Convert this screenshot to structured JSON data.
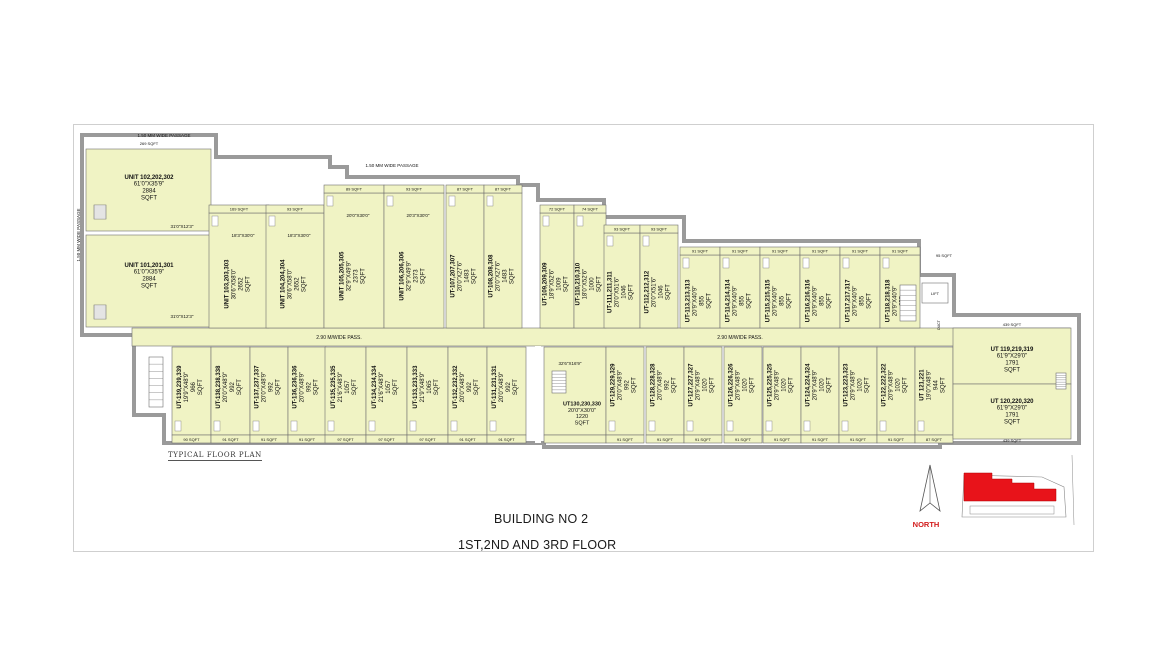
{
  "building_title": "BUILDING NO 2",
  "floor_title": "1ST,2ND AND 3RD FLOOR",
  "typical_label": "TYPICAL FLOOR PLAN",
  "north_label": "NORTH",
  "passages": {
    "top_wide_1": "1.50 MM WIDE PASSAGE",
    "top_wide_2": "1.50 MM WIDE PASSAGE",
    "left_wide": "1.50 MM WIDE PASSAGE",
    "corridor_left": "2.90 M/WIDE PASS.",
    "corridor_right": "2.90 M/WIDE PASS."
  },
  "colors": {
    "unit_fill": "#f0f3c4",
    "stroke": "#6f6f6f",
    "wall": "#8a8a8a",
    "keyplan_highlight": "#e8131a"
  },
  "left_units": [
    {
      "id": "UNIT 102,202,302",
      "dim": "61'0\"X35'9\"",
      "area": "2884",
      "unit": "SQFT",
      "sub": "31'0\"X12'3\""
    },
    {
      "id": "UNIT 101,201,301",
      "dim": "61'0\"X35'9\"",
      "area": "2884",
      "unit": "SQFT",
      "sub": "31'0\"X12'3\""
    }
  ],
  "top_units": [
    {
      "lines": [
        "UNIT 103,203,303",
        "30'6\"X58'0\"",
        "2652",
        "SQFT"
      ],
      "tag": "169 SQFT",
      "size": "18'3\"X30'0\""
    },
    {
      "lines": [
        "UNIT 104,204,304",
        "30'6\"X58'0\"",
        "2652",
        "SQFT"
      ],
      "tag": "93 SQFT",
      "size": "18'3\"X30'0\""
    },
    {
      "lines": [
        "UNIT 105,205,305",
        "32'9\"X49'9\"",
        "2373",
        "SQFT"
      ],
      "tag": "89 SQFT",
      "size": "20'0\"X30'0\""
    },
    {
      "lines": [
        "UNIT 106,206,306",
        "32'9\"X49'9\"",
        "2373",
        "SQFT"
      ],
      "tag": "93 SQFT",
      "size": "20'3\"X30'0\""
    },
    {
      "lines": [
        "UT-107,207,307",
        "20'0\"X27'6\"",
        "1483",
        "SQFT"
      ],
      "tag": "87 SQFT"
    },
    {
      "lines": [
        "UT-108,208,308",
        "20'0\"X27'6\"",
        "1483",
        "SQFT"
      ],
      "tag": "87 SQFT"
    },
    {
      "lines": [
        "UT-109,209,309",
        "18'9\"X52'6\"",
        "1009",
        "SQFT"
      ],
      "tag": "72 SQFT"
    },
    {
      "lines": [
        "UT-110,210,310",
        "18'0\"X52'6\"",
        "1000",
        "SQFT"
      ],
      "tag": "74 SQFT"
    },
    {
      "lines": [
        "UT-111,211,311",
        "20'0\"X51'6\"",
        "1046",
        "SQFT"
      ],
      "tag": "93 SQFT"
    },
    {
      "lines": [
        "UT-112,212,312",
        "20'0\"X51'6\"",
        "1046",
        "SQFT"
      ],
      "tag": "93 SQFT"
    },
    {
      "lines": [
        "UT-113,213,313",
        "20'9\"X40'9\"",
        "855",
        "SQFT"
      ],
      "tag": "91 SQFT"
    },
    {
      "lines": [
        "UT-114,214,314",
        "20'9\"X40'9\"",
        "855",
        "SQFT"
      ],
      "tag": "91 SQFT"
    },
    {
      "lines": [
        "UT-115,215,315",
        "20'9\"X40'9\"",
        "855",
        "SQFT"
      ],
      "tag": "91 SQFT"
    },
    {
      "lines": [
        "UT-116,216,316",
        "20'9\"X40'9\"",
        "855",
        "SQFT"
      ],
      "tag": "91 SQFT"
    },
    {
      "lines": [
        "UT-117,217,317",
        "20'9\"X40'9\"",
        "855",
        "SQFT"
      ],
      "tag": "91 SQFT"
    },
    {
      "lines": [
        "UT-118,218,318",
        "20'9\"X40'9\"",
        "855",
        "SQFT"
      ],
      "tag": "91 SQFT"
    }
  ],
  "bottom_units": [
    {
      "lines": [
        "UT-139,239,339",
        "19'9\"X48'9\"",
        "966",
        "SQFT"
      ],
      "tag": "90 SQFT"
    },
    {
      "lines": [
        "UT-138,238,338",
        "20'0\"X48'9\"",
        "992",
        "SQFT"
      ],
      "tag": "91 SQFT"
    },
    {
      "lines": [
        "UT-137,237,337",
        "20'0\"X48'9\"",
        "992",
        "SQFT"
      ],
      "tag": "91 SQFT"
    },
    {
      "lines": [
        "UT-136,236,336",
        "20'0\"X48'9\"",
        "992",
        "SQFT"
      ],
      "tag": "91 SQFT"
    },
    {
      "lines": [
        "UT-135,235,335",
        "21'6\"X48'9\"",
        "1057",
        "SQFT"
      ],
      "tag": "97 SQFT"
    },
    {
      "lines": [
        "UT-134,234,334",
        "21'6\"X48'9\"",
        "1057",
        "SQFT"
      ],
      "tag": "97 SQFT"
    },
    {
      "lines": [
        "UT-133,233,333",
        "21'9\"X48'9\"",
        "1065",
        "SQFT"
      ],
      "tag": "97 SQFT"
    },
    {
      "lines": [
        "UT-132,232,332",
        "20'0\"X48'9\"",
        "992",
        "SQFT"
      ],
      "tag": "91 SQFT"
    },
    {
      "lines": [
        "UT-131,231,331",
        "20'0\"X48'9\"",
        "992",
        "SQFT"
      ],
      "tag": "91 SQFT"
    },
    {
      "lines": [
        "UT130,230,330",
        "20'0\"X30'0\"",
        "1220",
        "SQFT"
      ],
      "tag": "",
      "size": "32'6\"X16'9\""
    },
    {
      "lines": [
        "UT-129,229,329",
        "20'0\"X48'9\"",
        "992",
        "SQFT"
      ],
      "tag": "91 SQFT"
    },
    {
      "lines": [
        "UT-128,228,328",
        "20'0\"X48'9\"",
        "992",
        "SQFT"
      ],
      "tag": "91 SQFT"
    },
    {
      "lines": [
        "UT-127,227,327",
        "20'9\"X48'9\"",
        "1020",
        "SQFT"
      ],
      "tag": "91 SQFT"
    },
    {
      "lines": [
        "UT-126,226,326",
        "20'9\"X48'9\"",
        "1020",
        "SQFT"
      ],
      "tag": "91 SQFT"
    },
    {
      "lines": [
        "UT-125,225,325",
        "20'9\"X48'9\"",
        "1020",
        "SQFT"
      ],
      "tag": "91 SQFT"
    },
    {
      "lines": [
        "UT-124,224,324",
        "20'9\"X48'9\"",
        "1020",
        "SQFT"
      ],
      "tag": "91 SQFT"
    },
    {
      "lines": [
        "UT-123,223,323",
        "20'9\"X48'9\"",
        "1020",
        "SQFT"
      ],
      "tag": "91 SQFT"
    },
    {
      "lines": [
        "UT-122,222,322",
        "20'9\"X48'9\"",
        "1020",
        "SQFT"
      ],
      "tag": "91 SQFT"
    },
    {
      "lines": [
        "UT 121,221",
        "19'0\"X48'9\"",
        "944",
        "SQFT"
      ],
      "tag": "87 SQFT"
    }
  ],
  "right_units": [
    {
      "lines": [
        "UT 119,219,319",
        "61'9\"X29'0\"",
        "1791",
        "SQFT"
      ],
      "tag": "439 SQFT"
    },
    {
      "lines": [
        "UT 120,220,320",
        "61'9\"X29'0\"",
        "1791",
        "SQFT"
      ],
      "tag": "439 SQFT"
    }
  ],
  "misc_tags": {
    "left_top": "269 SQFT",
    "corner_top_right": "95 SQFT",
    "lift": "LIFT",
    "duct": "DUCT"
  }
}
